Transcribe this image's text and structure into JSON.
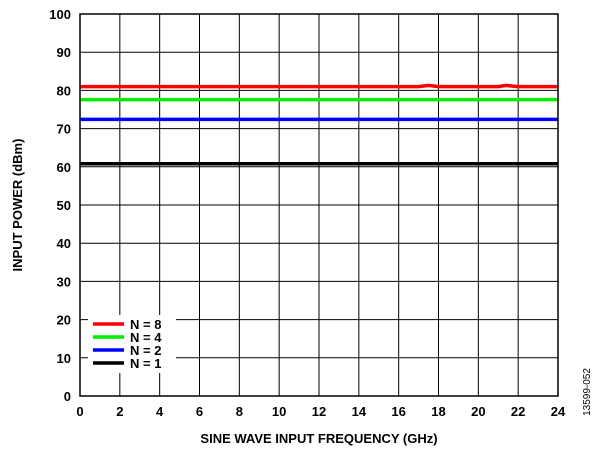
{
  "chart_data": {
    "type": "line",
    "title": "",
    "xlabel": "SINE WAVE INPUT FREQUENCY (GHz)",
    "ylabel": "INPUT POWER (dBm)",
    "xlim": [
      0,
      24
    ],
    "ylim": [
      0,
      100
    ],
    "xticks": [
      0,
      2,
      4,
      6,
      8,
      10,
      12,
      14,
      16,
      18,
      20,
      22,
      24
    ],
    "yticks": [
      0,
      10,
      20,
      30,
      40,
      50,
      60,
      70,
      80,
      90,
      100
    ],
    "grid": true,
    "legend_position": "bottom-left",
    "series": [
      {
        "name": "N = 8",
        "color": "#ff0000",
        "x": [
          0,
          2,
          4,
          6,
          8,
          10,
          12,
          14,
          16,
          17,
          17.5,
          18,
          20,
          21,
          21.4,
          22,
          24
        ],
        "y": [
          81,
          81,
          81,
          81,
          81,
          81,
          81,
          81,
          81,
          81,
          81.3,
          81,
          81,
          81,
          81.3,
          81,
          81
        ]
      },
      {
        "name": "N = 4",
        "color": "#00ee00",
        "x": [
          0,
          24
        ],
        "y": [
          77.6,
          77.6
        ]
      },
      {
        "name": "N = 2",
        "color": "#0000ff",
        "x": [
          0,
          24
        ],
        "y": [
          72.4,
          72.4
        ]
      },
      {
        "name": "N = 1",
        "color": "#000000",
        "x": [
          0,
          24
        ],
        "y": [
          60.8,
          60.8
        ]
      }
    ]
  },
  "figure_id": "13599-052"
}
